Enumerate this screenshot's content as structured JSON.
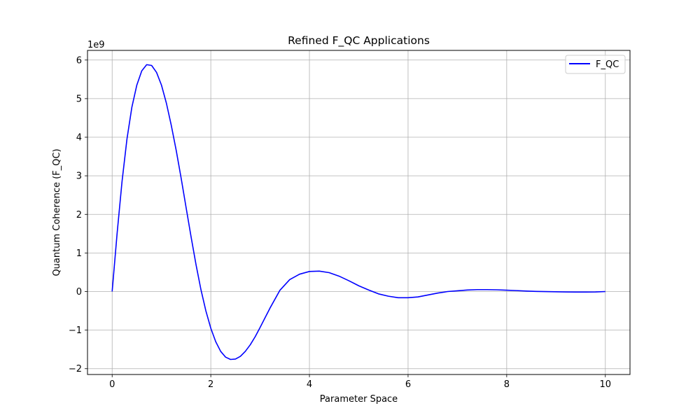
{
  "chart_data": {
    "type": "line",
    "title": "Refined F_QC Applications",
    "xlabel": "Parameter Space",
    "ylabel": "Quantum Coherence (F_QC)",
    "y_offset_label": "1e9",
    "xlim": [
      -0.5,
      10.5
    ],
    "ylim": [
      -2.15,
      6.25
    ],
    "x_ticks": [
      0,
      2,
      4,
      6,
      8,
      10
    ],
    "x_tick_labels": [
      "0",
      "2",
      "4",
      "6",
      "8",
      "10"
    ],
    "y_ticks": [
      -2,
      -1,
      0,
      1,
      2,
      3,
      4,
      5,
      6
    ],
    "y_tick_labels": [
      "−2",
      "−1",
      "0",
      "1",
      "2",
      "3",
      "4",
      "5",
      "6"
    ],
    "grid": true,
    "legend_position": "top-right",
    "series": [
      {
        "name": "F_QC",
        "color": "#0000ff",
        "x": [
          0,
          0.1,
          0.2,
          0.3,
          0.4,
          0.5,
          0.6,
          0.7,
          0.8,
          0.9,
          1.0,
          1.1,
          1.2,
          1.3,
          1.4,
          1.5,
          1.6,
          1.7,
          1.8,
          1.9,
          2.0,
          2.1,
          2.2,
          2.3,
          2.4,
          2.5,
          2.6,
          2.7,
          2.8,
          2.9,
          3.0,
          3.2,
          3.4,
          3.6,
          3.8,
          4.0,
          4.2,
          4.4,
          4.6,
          4.8,
          5.0,
          5.2,
          5.4,
          5.6,
          5.8,
          6.0,
          6.2,
          6.4,
          6.6,
          6.8,
          7.0,
          7.2,
          7.4,
          7.6,
          7.8,
          8.0,
          8.2,
          8.4,
          8.6,
          8.8,
          9.0,
          9.2,
          9.4,
          9.6,
          9.8,
          10.0
        ],
        "y": [
          0,
          1.5,
          2.85,
          3.95,
          4.78,
          5.35,
          5.72,
          5.88,
          5.86,
          5.68,
          5.35,
          4.88,
          4.3,
          3.65,
          2.93,
          2.17,
          1.42,
          0.7,
          0.05,
          -0.5,
          -0.95,
          -1.3,
          -1.55,
          -1.7,
          -1.76,
          -1.75,
          -1.68,
          -1.55,
          -1.38,
          -1.17,
          -0.93,
          -0.43,
          0.03,
          0.31,
          0.45,
          0.52,
          0.53,
          0.49,
          0.4,
          0.28,
          0.15,
          0.04,
          -0.06,
          -0.12,
          -0.16,
          -0.16,
          -0.14,
          -0.09,
          -0.04,
          0.0,
          0.02,
          0.04,
          0.05,
          0.05,
          0.045,
          0.035,
          0.025,
          0.012,
          0.004,
          -0.002,
          -0.006,
          -0.01,
          -0.012,
          -0.012,
          -0.01,
          0.0
        ]
      }
    ]
  }
}
